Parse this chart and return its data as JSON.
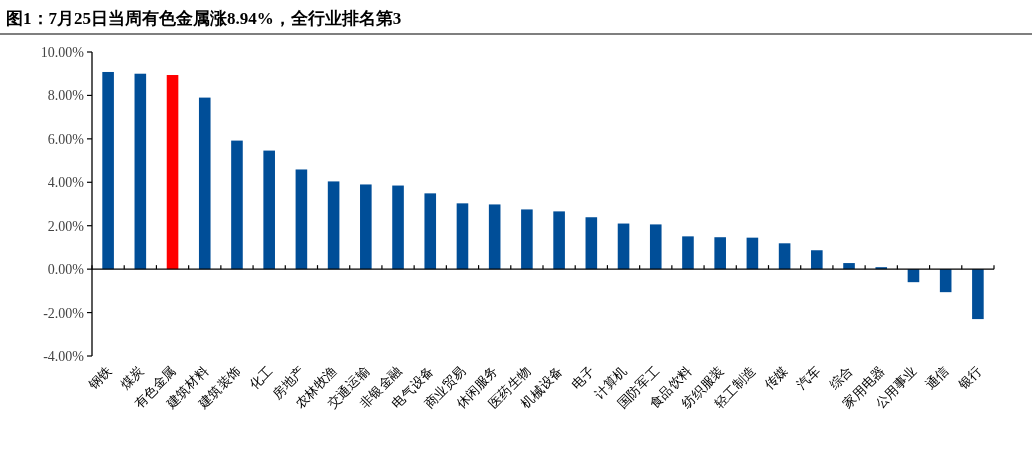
{
  "chart_data": {
    "type": "bar",
    "title": "图1：7月25日当周有色金属涨8.94%，全行业排名第3",
    "categories": [
      "钢铁",
      "煤炭",
      "有色金属",
      "建筑材料",
      "建筑装饰",
      "化工",
      "房地产",
      "农林牧渔",
      "交通运输",
      "非银金融",
      "电气设备",
      "商业贸易",
      "休闲服务",
      "医药生物",
      "机械设备",
      "电子",
      "计算机",
      "国防军工",
      "食品饮料",
      "纺织服装",
      "轻工制造",
      "传媒",
      "汽车",
      "综合",
      "家用电器",
      "公用事业",
      "通信",
      "银行"
    ],
    "values": [
      9.08,
      9.0,
      8.94,
      7.9,
      5.92,
      5.46,
      4.59,
      4.04,
      3.9,
      3.85,
      3.49,
      3.03,
      2.98,
      2.75,
      2.66,
      2.39,
      2.1,
      2.06,
      1.51,
      1.47,
      1.45,
      1.19,
      0.87,
      0.28,
      0.09,
      -0.6,
      -1.06,
      -2.3
    ],
    "colors": [
      "#004e98",
      "#004e98",
      "#ff0000",
      "#004e98",
      "#004e98",
      "#004e98",
      "#004e98",
      "#004e98",
      "#004e98",
      "#004e98",
      "#004e98",
      "#004e98",
      "#004e98",
      "#004e98",
      "#004e98",
      "#004e98",
      "#004e98",
      "#004e98",
      "#004e98",
      "#004e98",
      "#004e98",
      "#004e98",
      "#004e98",
      "#004e98",
      "#004e98",
      "#004e98",
      "#004e98",
      "#004e98"
    ],
    "ylim": [
      -4,
      10
    ],
    "yticks": [
      {
        "value": -4,
        "label": "-4.00%"
      },
      {
        "value": -2,
        "label": "-2.00%"
      },
      {
        "value": 0,
        "label": "0.00%"
      },
      {
        "value": 2,
        "label": "2.00%"
      },
      {
        "value": 4,
        "label": "4.00%"
      },
      {
        "value": 6,
        "label": "6.00%"
      },
      {
        "value": 8,
        "label": "8.00%"
      },
      {
        "value": 10,
        "label": "10.00%"
      }
    ]
  }
}
